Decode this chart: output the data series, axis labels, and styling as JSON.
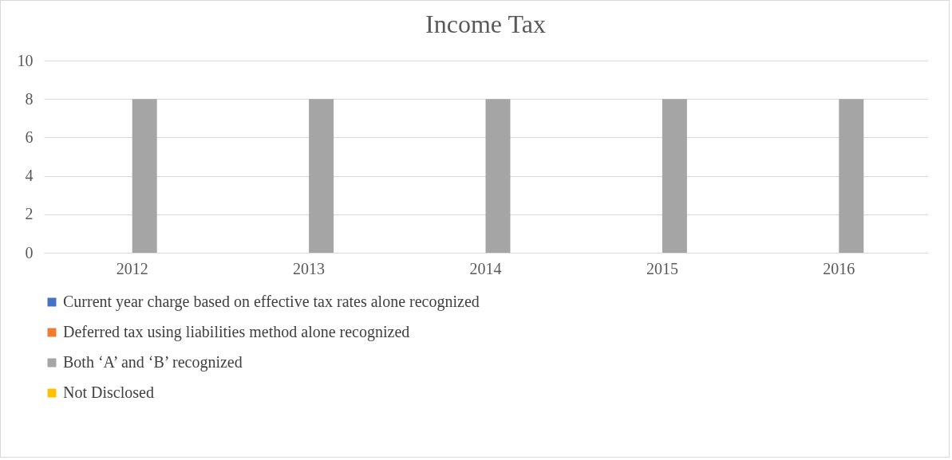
{
  "chart_data": {
    "type": "bar",
    "title": "Income Tax",
    "categories": [
      "2012",
      "2013",
      "2014",
      "2015",
      "2016"
    ],
    "series": [
      {
        "name": "Current year charge based on effective tax rates alone recognized",
        "color": "#4472c4",
        "values": [
          0,
          0,
          0,
          0,
          0
        ]
      },
      {
        "name": "Deferred tax using liabilities method alone recognized",
        "color": "#ed7d31",
        "values": [
          0,
          0,
          0,
          0,
          0
        ]
      },
      {
        "name": "Both ‘A’ and ‘B’ recognized",
        "color": "#a5a5a5",
        "values": [
          8,
          8,
          8,
          8,
          8
        ]
      },
      {
        "name": "Not Disclosed",
        "color": "#ffc000",
        "values": [
          0,
          0,
          0,
          0,
          0
        ]
      }
    ],
    "ylim": [
      0,
      10
    ],
    "yticks": [
      0,
      2,
      4,
      6,
      8,
      10
    ],
    "grid": "y",
    "legend": "bottom"
  }
}
